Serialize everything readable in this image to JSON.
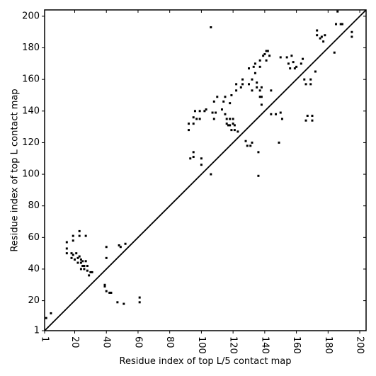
{
  "chart_data": {
    "type": "scatter",
    "xlabel": "Residue index of top L/5 contact map",
    "ylabel": "Residue index of top L contact map",
    "xlim": [
      1,
      204
    ],
    "ylim": [
      1,
      204
    ],
    "xticks": [
      1,
      20,
      40,
      60,
      80,
      100,
      120,
      140,
      160,
      180,
      200
    ],
    "yticks": [
      1,
      20,
      40,
      60,
      80,
      100,
      120,
      140,
      160,
      180,
      200
    ],
    "tick_label_rotation_x": -90,
    "diagonal": true,
    "marker_color": "#000000",
    "points": [
      [
        2,
        9
      ],
      [
        5,
        12
      ],
      [
        15,
        50
      ],
      [
        15,
        53
      ],
      [
        15,
        57
      ],
      [
        18,
        47
      ],
      [
        18,
        50
      ],
      [
        19,
        49
      ],
      [
        19,
        58
      ],
      [
        19,
        61
      ],
      [
        20,
        46
      ],
      [
        21,
        50
      ],
      [
        22,
        44
      ],
      [
        22,
        47
      ],
      [
        23,
        48
      ],
      [
        23,
        61
      ],
      [
        23,
        64
      ],
      [
        24,
        40
      ],
      [
        24,
        44
      ],
      [
        24,
        46
      ],
      [
        25,
        42
      ],
      [
        25,
        45
      ],
      [
        26,
        40
      ],
      [
        26,
        42
      ],
      [
        27,
        45
      ],
      [
        27,
        61
      ],
      [
        28,
        42
      ],
      [
        28,
        39
      ],
      [
        29,
        36
      ],
      [
        30,
        38
      ],
      [
        31,
        38
      ],
      [
        39,
        30
      ],
      [
        39,
        29
      ],
      [
        40,
        26
      ],
      [
        40,
        47
      ],
      [
        40,
        54
      ],
      [
        42,
        25
      ],
      [
        43,
        25
      ],
      [
        47,
        19
      ],
      [
        48,
        55
      ],
      [
        49,
        54
      ],
      [
        51,
        18
      ],
      [
        52,
        56
      ],
      [
        61,
        22
      ],
      [
        61,
        19
      ],
      [
        92,
        128
      ],
      [
        92,
        132
      ],
      [
        93,
        110
      ],
      [
        95,
        111
      ],
      [
        95,
        114
      ],
      [
        95,
        132
      ],
      [
        95,
        136
      ],
      [
        96,
        140
      ],
      [
        97,
        135
      ],
      [
        99,
        135
      ],
      [
        99,
        140
      ],
      [
        100,
        106
      ],
      [
        100,
        110
      ],
      [
        102,
        140
      ],
      [
        103,
        141
      ],
      [
        106,
        193
      ],
      [
        106,
        100
      ],
      [
        107,
        139
      ],
      [
        108,
        135
      ],
      [
        108,
        146
      ],
      [
        109,
        139
      ],
      [
        110,
        149
      ],
      [
        113,
        141
      ],
      [
        114,
        146
      ],
      [
        115,
        149
      ],
      [
        115,
        138
      ],
      [
        116,
        135
      ],
      [
        116,
        132
      ],
      [
        117,
        131
      ],
      [
        118,
        131
      ],
      [
        118,
        135
      ],
      [
        118,
        145
      ],
      [
        119,
        150
      ],
      [
        119,
        128
      ],
      [
        120,
        132
      ],
      [
        120,
        135
      ],
      [
        121,
        128
      ],
      [
        121,
        131
      ],
      [
        122,
        153
      ],
      [
        122,
        157
      ],
      [
        123,
        127
      ],
      [
        125,
        155
      ],
      [
        126,
        157
      ],
      [
        126,
        160
      ],
      [
        128,
        121
      ],
      [
        129,
        118
      ],
      [
        130,
        157
      ],
      [
        130,
        167
      ],
      [
        131,
        118
      ],
      [
        132,
        120
      ],
      [
        132,
        153
      ],
      [
        132,
        160
      ],
      [
        133,
        168
      ],
      [
        134,
        164
      ],
      [
        134,
        170
      ],
      [
        135,
        158
      ],
      [
        135,
        155
      ],
      [
        136,
        99
      ],
      [
        136,
        114
      ],
      [
        137,
        153
      ],
      [
        137,
        149
      ],
      [
        137,
        168
      ],
      [
        137,
        172
      ],
      [
        138,
        144
      ],
      [
        138,
        149
      ],
      [
        138,
        155
      ],
      [
        139,
        175
      ],
      [
        140,
        176
      ],
      [
        141,
        172
      ],
      [
        141,
        178
      ],
      [
        142,
        178
      ],
      [
        143,
        175
      ],
      [
        144,
        138
      ],
      [
        144,
        153
      ],
      [
        147,
        138
      ],
      [
        149,
        120
      ],
      [
        150,
        139
      ],
      [
        150,
        174
      ],
      [
        151,
        135
      ],
      [
        154,
        174
      ],
      [
        155,
        170
      ],
      [
        156,
        167
      ],
      [
        157,
        175
      ],
      [
        158,
        171
      ],
      [
        159,
        167
      ],
      [
        160,
        168
      ],
      [
        163,
        170
      ],
      [
        164,
        173
      ],
      [
        165,
        160
      ],
      [
        166,
        157
      ],
      [
        166,
        134
      ],
      [
        167,
        137
      ],
      [
        169,
        160
      ],
      [
        169,
        157
      ],
      [
        170,
        134
      ],
      [
        170,
        137
      ],
      [
        172,
        165
      ],
      [
        173,
        188
      ],
      [
        173,
        191
      ],
      [
        175,
        186
      ],
      [
        176,
        187
      ],
      [
        177,
        184
      ],
      [
        178,
        188
      ],
      [
        184,
        177
      ],
      [
        185,
        195
      ],
      [
        186,
        203
      ],
      [
        188,
        195
      ],
      [
        189,
        195
      ],
      [
        195,
        187
      ],
      [
        195,
        190
      ]
    ]
  }
}
